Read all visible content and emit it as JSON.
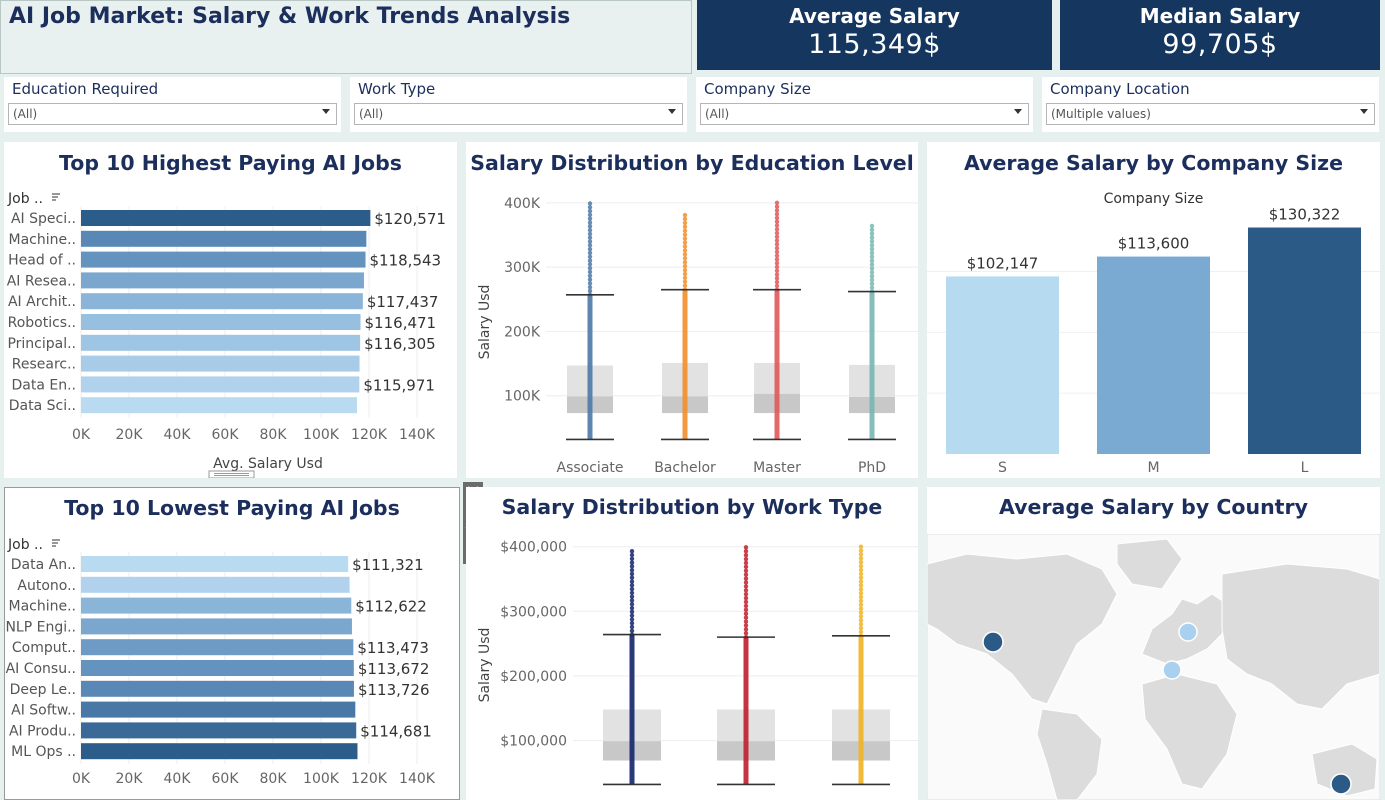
{
  "header": {
    "title": "AI Job Market: Salary & Work Trends Analysis",
    "kpis": [
      {
        "label": "Average Salary",
        "value": "115,349$"
      },
      {
        "label": "Median Salary",
        "value": "99,705$"
      }
    ]
  },
  "filters": [
    {
      "label": "Education Required",
      "value": "(All)"
    },
    {
      "label": "Work Type",
      "value": "(All)"
    },
    {
      "label": "Company Size",
      "value": "(All)"
    },
    {
      "label": "Company Location",
      "value": "(Multiple values)"
    }
  ],
  "chart_data": [
    {
      "id": "top_jobs",
      "type": "bar",
      "orientation": "horizontal",
      "title": "Top 10 Highest Paying AI Jobs",
      "row_header": "Job ..",
      "xlabel": "Avg. Salary Usd",
      "xlim": [
        0,
        150000
      ],
      "x_ticks": [
        "0K",
        "20K",
        "40K",
        "60K",
        "80K",
        "100K",
        "120K",
        "140K"
      ],
      "categories": [
        "AI Speci..",
        "Machine..",
        "Head of ..",
        "AI Resea..",
        "AI Archit..",
        "Robotics..",
        "Principal..",
        "Researc..",
        "Data En..",
        "Data Sci.."
      ],
      "values": [
        120571,
        118900,
        118543,
        117900,
        117437,
        116471,
        116305,
        116050,
        115971,
        115000
      ],
      "labels": [
        "$120,571",
        "",
        "$118,543",
        "",
        "$117,437",
        "$116,471",
        "$116,305",
        "",
        "$115,971",
        ""
      ],
      "colors": [
        "#2b5c8a",
        "#5a88b6",
        "#6393be",
        "#7ba7cf",
        "#8bb5d8",
        "#97bfe0",
        "#9fc5e5",
        "#a8cce8",
        "#b0d2ec",
        "#b8dbf1"
      ]
    },
    {
      "id": "edu_box",
      "type": "box",
      "title": "Salary Distribution by Education Level",
      "ylabel": "Salary Usd",
      "ylim": [
        0,
        420000
      ],
      "y_ticks": [
        {
          "v": 100000,
          "t": "100K"
        },
        {
          "v": 200000,
          "t": "200K"
        },
        {
          "v": 300000,
          "t": "300K"
        },
        {
          "v": 400000,
          "t": "400K"
        }
      ],
      "categories": [
        "Associate",
        "Bachelor",
        "Master",
        "PhD"
      ],
      "colors": [
        "#4e79a7",
        "#f28e2b",
        "#e15759",
        "#76b7b2"
      ],
      "stats": [
        {
          "min": 32000,
          "q1": 73000,
          "median": 99000,
          "q3": 147000,
          "whisker_hi": 257000,
          "max": 399000
        },
        {
          "min": 32000,
          "q1": 73000,
          "median": 99000,
          "q3": 151000,
          "whisker_hi": 265000,
          "max": 381000
        },
        {
          "min": 32000,
          "q1": 73000,
          "median": 103000,
          "q3": 151000,
          "whisker_hi": 265000,
          "max": 400000
        },
        {
          "min": 32000,
          "q1": 73000,
          "median": 98000,
          "q3": 148000,
          "whisker_hi": 262000,
          "max": 364000
        }
      ]
    },
    {
      "id": "company_size",
      "type": "bar",
      "title": "Average Salary by Company Size",
      "subtitle": "Company Size",
      "categories": [
        "S",
        "M",
        "L"
      ],
      "values": [
        102147,
        113600,
        130322
      ],
      "labels": [
        "$102,147",
        "$113,600",
        "$130,322"
      ],
      "colors": [
        "#b6daf0",
        "#7aa9d2",
        "#2b5a86"
      ],
      "ylim": [
        0,
        145000
      ]
    },
    {
      "id": "low_jobs",
      "type": "bar",
      "orientation": "horizontal",
      "title": "Top 10 Lowest Paying AI Jobs",
      "row_header": "Job ..",
      "xlim": [
        0,
        150000
      ],
      "x_ticks": [
        "0K",
        "20K",
        "40K",
        "60K",
        "80K",
        "100K",
        "120K",
        "140K"
      ],
      "categories": [
        "Data An..",
        "Autono..",
        "Machine..",
        "NLP Engi..",
        "Comput..",
        "AI Consu..",
        "Deep Le..",
        "AI Softw..",
        "AI Produ..",
        "ML Ops .."
      ],
      "values": [
        111321,
        111900,
        112622,
        112900,
        113473,
        113672,
        113726,
        114300,
        114681,
        115200
      ],
      "labels": [
        "$111,321",
        "",
        "$112,622",
        "",
        "$113,473",
        "$113,672",
        "$113,726",
        "",
        "$114,681",
        ""
      ],
      "colors": [
        "#b8dbf1",
        "#b0d2ec",
        "#8bb5d8",
        "#7ba7cf",
        "#6d9bc5",
        "#6393be",
        "#5a88b6",
        "#4a78a6",
        "#3b6a98",
        "#2b5c8a"
      ]
    },
    {
      "id": "work_box",
      "type": "box",
      "title": "Salary Distribution by Work Type",
      "ylabel": "Salary Usd",
      "ylim": [
        28000,
        415000
      ],
      "y_ticks": [
        {
          "v": 100000,
          "t": "$100,000"
        },
        {
          "v": 200000,
          "t": "$200,000"
        },
        {
          "v": 300000,
          "t": "$300,000"
        },
        {
          "v": 400000,
          "t": "$400,000"
        }
      ],
      "categories": [
        "",
        "",
        ""
      ],
      "colors": [
        "#13246b",
        "#c01d2c",
        "#f0b323"
      ],
      "stats": [
        {
          "min": 32000,
          "q1": 69000,
          "median": 99000,
          "q3": 148000,
          "whisker_hi": 264000,
          "max": 393000
        },
        {
          "min": 32000,
          "q1": 69000,
          "median": 99000,
          "q3": 148000,
          "whisker_hi": 260000,
          "max": 399000
        },
        {
          "min": 32000,
          "q1": 69000,
          "median": 99000,
          "q3": 148000,
          "whisker_hi": 262000,
          "max": 400000
        }
      ]
    }
  ],
  "map": {
    "title": "Average Salary by Country",
    "points": [
      {
        "name": "Canada",
        "color": "#2b5a86"
      },
      {
        "name": "Finland",
        "color": "#a9d0ee"
      },
      {
        "name": "Switzerland",
        "color": "#a9d0ee"
      },
      {
        "name": "Australia",
        "color": "#2b5a86"
      }
    ]
  },
  "toolbar_icons": [
    "close-icon",
    "popout-icon",
    "filter-icon",
    "dropdown-icon"
  ]
}
